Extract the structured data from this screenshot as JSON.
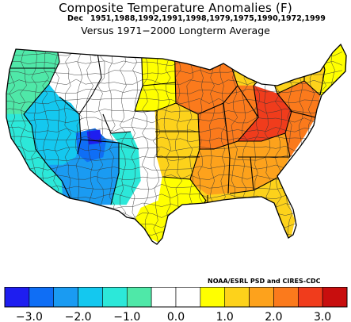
{
  "header": {
    "title": "Composite Temperature Anomalies (F)",
    "month": "Dec",
    "years": "1951,1988,1992,1991,1998,1979,1975,1990,1972,1999",
    "baseline": "Versus 1971−2000 Longterm Average"
  },
  "credit": "NOAA/ESRL PSD and CIRES-CDC",
  "colors": {
    "bins": [
      "#1e1ef0",
      "#0f6ef5",
      "#1a9bf2",
      "#14c8ef",
      "#2ce8d9",
      "#4fe8a8",
      "#ffffff",
      "#ffffff",
      "#ffff00",
      "#fdd21b",
      "#fda21c",
      "#fb7a1c",
      "#f03c1c",
      "#c80e0e"
    ],
    "state_lines": "#000000",
    "division_lines": "#333333"
  },
  "legend": {
    "tick_labels": [
      "−3.0",
      "−2.0",
      "−1.0",
      "0.0",
      "1.0",
      "2.0",
      "3.0"
    ],
    "tick_values": [
      -3.0,
      -2.0,
      -1.0,
      0.0,
      1.0,
      2.0,
      3.0
    ],
    "range": [
      -3.5,
      3.5
    ],
    "bin_width": 0.5
  },
  "map": {
    "regions": [
      {
        "id": "pacific-nw",
        "anomaly": -0.75
      },
      {
        "id": "california",
        "anomaly": -1.2
      },
      {
        "id": "great-basin",
        "anomaly": -1.7
      },
      {
        "id": "four-corners",
        "anomaly": -2.2
      },
      {
        "id": "utah-core",
        "anomaly": -2.7
      },
      {
        "id": "colorado-core",
        "anomaly": -3.2
      },
      {
        "id": "southern-rockies",
        "anomaly": -1.2
      },
      {
        "id": "northern-rockies",
        "anomaly": -0.2
      },
      {
        "id": "montana-plains",
        "anomaly": 0.2
      },
      {
        "id": "dakotas",
        "anomaly": 0.75
      },
      {
        "id": "high-plains",
        "anomaly": 0.4
      },
      {
        "id": "west-texas",
        "anomaly": 0.3
      },
      {
        "id": "texas",
        "anomaly": 0.75
      },
      {
        "id": "central-plains",
        "anomaly": 1.2
      },
      {
        "id": "upper-midwest",
        "anomaly": 2.2
      },
      {
        "id": "great-lakes",
        "anomaly": 1.2
      },
      {
        "id": "midwest",
        "anomaly": 2.2
      },
      {
        "id": "ohio-valley",
        "anomaly": 2.7
      },
      {
        "id": "southeast",
        "anomaly": 1.7
      },
      {
        "id": "gulf-coast",
        "anomaly": 1.3
      },
      {
        "id": "florida",
        "anomaly": 1.3
      },
      {
        "id": "mid-atlantic",
        "anomaly": 2.2
      },
      {
        "id": "new-england",
        "anomaly": 1.2
      },
      {
        "id": "maine",
        "anomaly": 0.8
      }
    ]
  }
}
